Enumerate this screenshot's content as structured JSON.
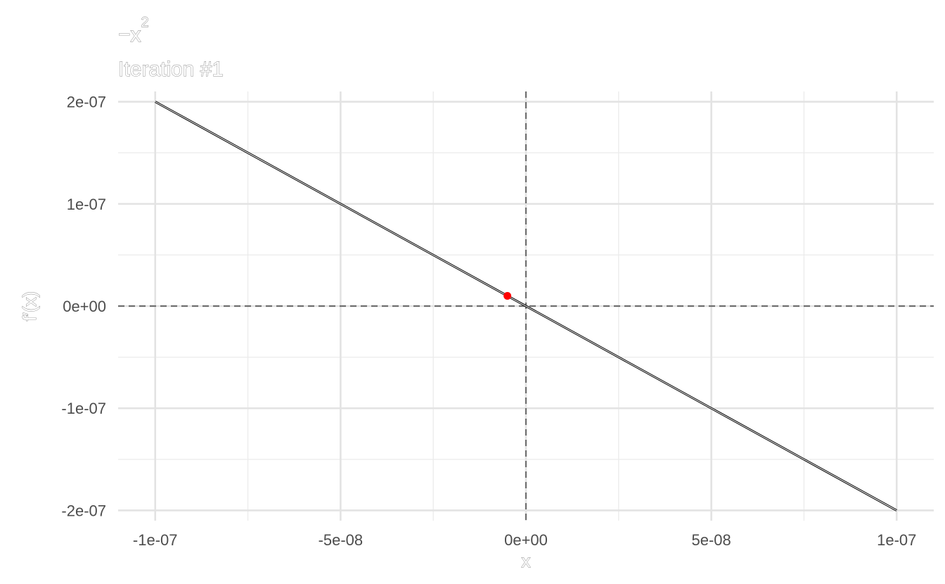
{
  "chart_data": {
    "type": "line",
    "title": "−x",
    "title_exponent": "2",
    "subtitle": "Iteration #1",
    "xlabel": "x",
    "ylabel": "f′(x)",
    "xlim": [
      -1.1e-07,
      1.1e-07
    ],
    "ylim": [
      -2.1e-07,
      2.1e-07
    ],
    "x_ticks": [
      {
        "value": -1e-07,
        "label": "-1e-07"
      },
      {
        "value": -5e-08,
        "label": "-5e-08"
      },
      {
        "value": 0,
        "label": "0e+00"
      },
      {
        "value": 5e-08,
        "label": "5e-08"
      },
      {
        "value": 1e-07,
        "label": "1e-07"
      }
    ],
    "y_ticks": [
      {
        "value": 2e-07,
        "label": "2e-07"
      },
      {
        "value": 1e-07,
        "label": "1e-07"
      },
      {
        "value": 0,
        "label": "0e+00"
      },
      {
        "value": -1e-07,
        "label": "-1e-07"
      },
      {
        "value": -2e-07,
        "label": "-2e-07"
      }
    ],
    "x_minor": [
      -7.5e-08,
      -2.5e-08,
      2.5e-08,
      7.5e-08
    ],
    "y_minor": [
      1.5e-07,
      5e-08,
      -5e-08,
      -1.5e-07
    ],
    "series": [
      {
        "name": "f'(x)",
        "x": [
          -1e-07,
          1e-07
        ],
        "y": [
          2e-07,
          -2e-07
        ],
        "color": "#000000"
      }
    ],
    "point": {
      "x": -5e-09,
      "y": 1e-08,
      "color": "#ff0000"
    },
    "reference_lines": {
      "x": 0,
      "y": 0,
      "color": "#707070",
      "style": "dashed"
    },
    "grid": true
  }
}
